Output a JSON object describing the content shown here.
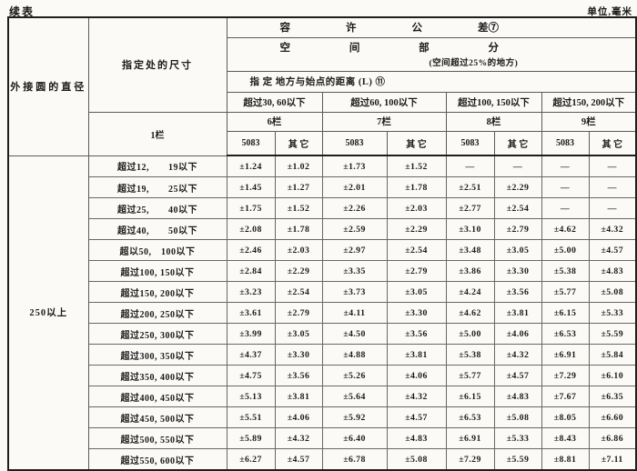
{
  "page": {
    "continued_label": "续表",
    "unit_label": "单位,毫米"
  },
  "header": {
    "col_diameter": "外接圆的直径",
    "col_size": "指定处的尺寸",
    "col1_label": "1栏",
    "tolerance_chars": [
      "容",
      "许",
      "公",
      "差⑦"
    ],
    "space_chars": [
      "空",
      "间",
      "部",
      "分"
    ],
    "space_note": "(空间超过25%的地方)",
    "distance_label": "指 定 地方与始点的距离 (L) ⑪",
    "groups": [
      {
        "range": "超过30, 60以下",
        "col": "6栏"
      },
      {
        "range": "超过60, 100以下",
        "col": "7栏"
      },
      {
        "range": "超过100, 150以下",
        "col": "8栏"
      },
      {
        "range": "超过150, 200以下",
        "col": "9栏"
      }
    ],
    "alloy_label": "5083",
    "other_label": "其 它"
  },
  "body": {
    "diameter_value": "250以上",
    "rows": [
      {
        "label": "超过12,　　19以下",
        "values": [
          "±1.24",
          "±1.02",
          "±1.73",
          "±1.52",
          "—",
          "—",
          "—",
          "—"
        ]
      },
      {
        "label": "超过19,　　25以下",
        "values": [
          "±1.45",
          "±1.27",
          "±2.01",
          "±1.78",
          "±2.51",
          "±2.29",
          "—",
          "—"
        ]
      },
      {
        "label": "超过25,　　40以下",
        "values": [
          "±1.75",
          "±1.52",
          "±2.26",
          "±2.03",
          "±2.77",
          "±2.54",
          "—",
          "—"
        ]
      },
      {
        "label": "超过40,　　50以下",
        "values": [
          "±2.08",
          "±1.78",
          "±2.59",
          "±2.29",
          "±3.10",
          "±2.79",
          "±4.62",
          "±4.32"
        ]
      },
      {
        "label": "超以50,　100以下",
        "values": [
          "±2.46",
          "±2.03",
          "±2.97",
          "±2.54",
          "±3.48",
          "±3.05",
          "±5.00",
          "±4.57"
        ]
      },
      {
        "label": "超过100, 150以下",
        "values": [
          "±2.84",
          "±2.29",
          "±3.35",
          "±2.79",
          "±3.86",
          "±3.30",
          "±5.38",
          "±4.83"
        ]
      },
      {
        "label": "超过150, 200以下",
        "values": [
          "±3.23",
          "±2.54",
          "±3.73",
          "±3.05",
          "±4.24",
          "±3.56",
          "±5.77",
          "±5.08"
        ]
      },
      {
        "label": "超过200, 250以下",
        "values": [
          "±3.61",
          "±2.79",
          "±4.11",
          "±3.30",
          "±4.62",
          "±3.81",
          "±6.15",
          "±5.33"
        ]
      },
      {
        "label": "超过250, 300以下",
        "values": [
          "±3.99",
          "±3.05",
          "±4.50",
          "±3.56",
          "±5.00",
          "±4.06",
          "±6.53",
          "±5.59"
        ]
      },
      {
        "label": "超过300, 350以下",
        "values": [
          "±4.37",
          "±3.30",
          "±4.88",
          "±3.81",
          "±5.38",
          "±4.32",
          "±6.91",
          "±5.84"
        ]
      },
      {
        "label": "超过350, 400以下",
        "values": [
          "±4.75",
          "±3.56",
          "±5.26",
          "±4.06",
          "±5.77",
          "±4.57",
          "±7.29",
          "±6.10"
        ]
      },
      {
        "label": "超过400, 450以下",
        "values": [
          "±5.13",
          "±3.81",
          "±5.64",
          "±4.32",
          "±6.15",
          "±4.83",
          "±7.67",
          "±6.35"
        ]
      },
      {
        "label": "超过450, 500以下",
        "values": [
          "±5.51",
          "±4.06",
          "±5.92",
          "±4.57",
          "±6.53",
          "±5.08",
          "±8.05",
          "±6.60"
        ]
      },
      {
        "label": "超过500, 550以下",
        "values": [
          "±5.89",
          "±4.32",
          "±6.40",
          "±4.83",
          "±6.91",
          "±5.33",
          "±8.43",
          "±6.86"
        ]
      },
      {
        "label": "超过550, 600以下",
        "values": [
          "±6.27",
          "±4.57",
          "±6.78",
          "±5.08",
          "±7.29",
          "±5.59",
          "±8.81",
          "±7.11"
        ]
      }
    ]
  }
}
